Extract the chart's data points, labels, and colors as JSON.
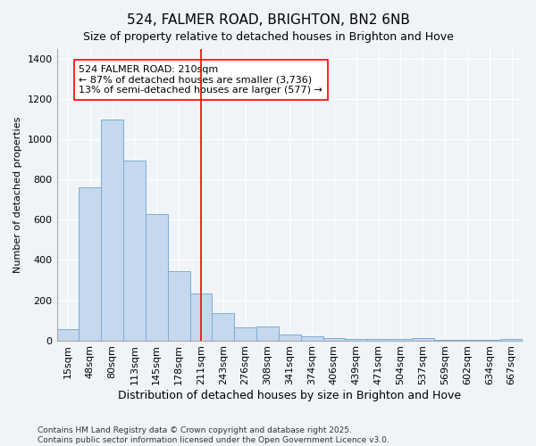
{
  "title": "524, FALMER ROAD, BRIGHTON, BN2 6NB",
  "subtitle": "Size of property relative to detached houses in Brighton and Hove",
  "xlabel": "Distribution of detached houses by size in Brighton and Hove",
  "ylabel": "Number of detached properties",
  "categories": [
    "15sqm",
    "48sqm",
    "80sqm",
    "113sqm",
    "145sqm",
    "178sqm",
    "211sqm",
    "243sqm",
    "276sqm",
    "308sqm",
    "341sqm",
    "374sqm",
    "406sqm",
    "439sqm",
    "471sqm",
    "504sqm",
    "537sqm",
    "569sqm",
    "602sqm",
    "634sqm",
    "667sqm"
  ],
  "values": [
    55,
    760,
    1100,
    895,
    630,
    345,
    235,
    135,
    65,
    70,
    30,
    20,
    10,
    5,
    5,
    5,
    10,
    3,
    2,
    2,
    8
  ],
  "bar_color": "#c5d8ee",
  "bar_edge_color": "#7aaed4",
  "red_line_index": 6,
  "annotation_text": "524 FALMER ROAD: 210sqm\n← 87% of detached houses are smaller (3,736)\n13% of semi-detached houses are larger (577) →",
  "ylim": [
    0,
    1450
  ],
  "yticks": [
    0,
    200,
    400,
    600,
    800,
    1000,
    1200,
    1400
  ],
  "background_color": "#f0f4f8",
  "plot_background": "#f0f4f8",
  "footer_text": "Contains HM Land Registry data © Crown copyright and database right 2025.\nContains public sector information licensed under the Open Government Licence v3.0.",
  "title_fontsize": 11,
  "subtitle_fontsize": 9,
  "xlabel_fontsize": 9,
  "ylabel_fontsize": 8,
  "tick_fontsize": 8,
  "annotation_fontsize": 8,
  "footer_fontsize": 6.5
}
